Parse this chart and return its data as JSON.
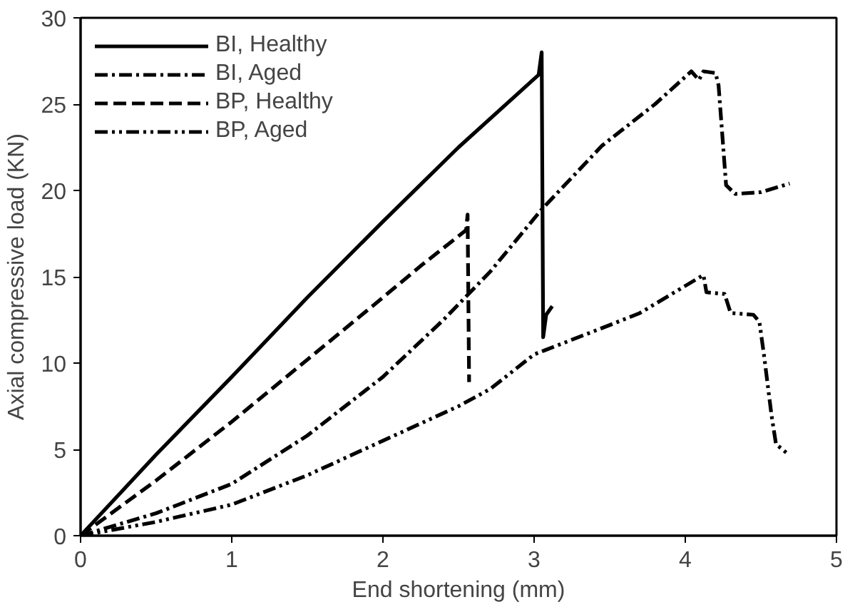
{
  "chart_data": {
    "type": "line",
    "xlabel": "End shortening (mm)",
    "ylabel": "Axial compressive load (KN)",
    "xlim": [
      0,
      5
    ],
    "ylim": [
      0,
      30
    ],
    "xticks": [
      0,
      1,
      2,
      3,
      4,
      5
    ],
    "yticks": [
      0,
      5,
      10,
      15,
      20,
      25,
      30
    ],
    "grid": false,
    "legend": "top left",
    "marker": "none",
    "series": [
      {
        "name": "BI, Healthy",
        "color": "#000000",
        "line_style": "solid",
        "x": [
          0,
          0.5,
          1,
          1.5,
          2,
          2.5,
          3.03,
          3.05,
          3.06,
          3.08,
          3.12
        ],
        "values": [
          0,
          4.7,
          9.2,
          13.8,
          18.2,
          22.5,
          26.7,
          28.0,
          11.5,
          12.8,
          13.3
        ]
      },
      {
        "name": "BI, Aged",
        "color": "#000000",
        "line_style": "dashdot",
        "x": [
          0,
          0.5,
          1,
          1.5,
          2,
          2.4,
          2.71,
          3.05,
          3.45,
          3.8,
          4.04,
          4.09,
          4.12,
          4.2,
          4.22,
          4.27,
          4.33,
          4.5,
          4.69
        ],
        "values": [
          0,
          1.3,
          3.0,
          5.8,
          9.2,
          12.5,
          15.3,
          18.9,
          22.6,
          25.0,
          26.9,
          26.4,
          26.9,
          26.8,
          26.1,
          20.3,
          19.8,
          19.9,
          20.4
        ]
      },
      {
        "name": "BP, Healthy",
        "color": "#000000",
        "line_style": "dashed",
        "x": [
          0,
          0.5,
          1,
          1.5,
          2,
          2.26,
          2.55,
          2.56,
          2.57
        ],
        "values": [
          0,
          3.2,
          6.6,
          10.2,
          13.8,
          15.7,
          17.7,
          18.6,
          8.9
        ]
      },
      {
        "name": "BP, Aged",
        "color": "#000000",
        "line_style": "dashdotdot",
        "x": [
          0,
          0.5,
          1,
          1.5,
          2,
          2.5,
          2.71,
          3,
          3.5,
          3.7,
          4.12,
          4.14,
          4.26,
          4.3,
          4.45,
          4.49,
          4.52,
          4.57,
          4.6,
          4.67
        ],
        "values": [
          0,
          0.8,
          1.8,
          3.5,
          5.5,
          7.5,
          8.5,
          10.5,
          12.2,
          12.9,
          15.1,
          14.1,
          14.0,
          12.9,
          12.8,
          12.4,
          10.5,
          7.0,
          5.3,
          4.8
        ]
      }
    ]
  }
}
